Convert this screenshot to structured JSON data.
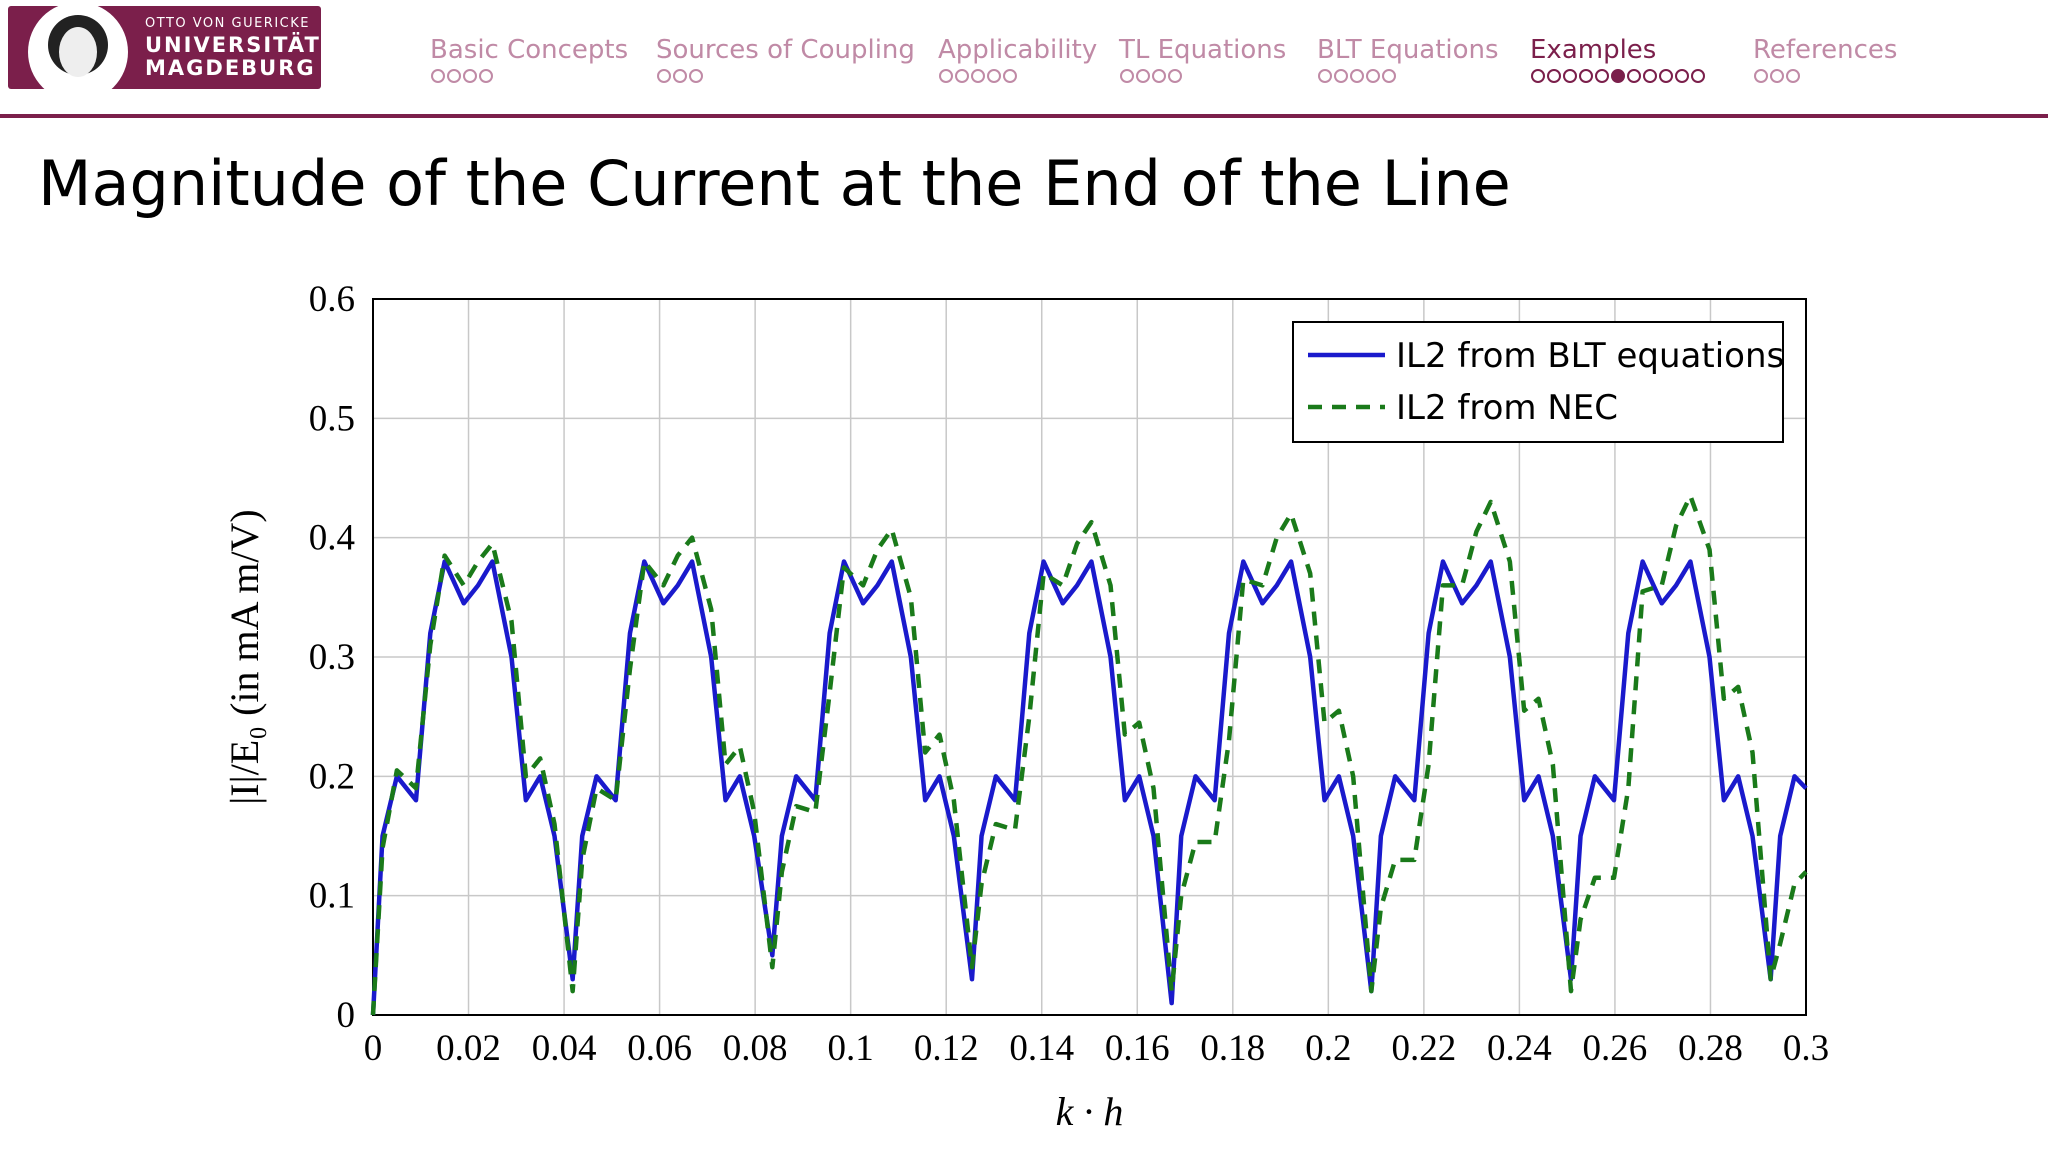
{
  "header": {
    "logo": [
      "OTTO VON GUERICKE",
      "UNIVERSITÄT",
      "MAGDEBURG"
    ],
    "nav": [
      "Basic Concepts",
      "Sources of Coupling",
      "Applicability",
      "TL Equations",
      "BLT Equations",
      "Examples",
      "References"
    ],
    "slide_title": "Magnitude of the Current at the End of the Line"
  },
  "chart_data": {
    "type": "line",
    "x_label": "k · h",
    "y_label": "|I|/E₀ (in mA m/V)",
    "xlim": [
      0,
      0.3
    ],
    "ylim": [
      0,
      0.6
    ],
    "xticks": [
      0,
      0.02,
      0.04,
      0.06,
      0.08,
      0.1,
      0.12,
      0.14,
      0.16,
      0.18,
      0.2,
      0.22,
      0.24,
      0.26,
      0.28,
      0.3
    ],
    "yticks": [
      0,
      0.1,
      0.2,
      0.3,
      0.4,
      0.5,
      0.6
    ],
    "grid": true,
    "legend": "upper right",
    "x": [
      0,
      0.002,
      0.005,
      0.009,
      0.012,
      0.015,
      0.019,
      0.022,
      0.025,
      0.029,
      0.032,
      0.035,
      0.038,
      0.0418,
      0.0438,
      0.0468,
      0.0508,
      0.0538,
      0.0568,
      0.0608,
      0.0638,
      0.0668,
      0.0708,
      0.0738,
      0.0768,
      0.0798,
      0.0836,
      0.0856,
      0.0886,
      0.0926,
      0.0956,
      0.0986,
      0.1026,
      0.1056,
      0.1086,
      0.1126,
      0.1156,
      0.1186,
      0.1216,
      0.1254,
      0.1274,
      0.1304,
      0.1344,
      0.1374,
      0.1404,
      0.1444,
      0.1474,
      0.1504,
      0.1544,
      0.1574,
      0.1604,
      0.1634,
      0.1672,
      0.1692,
      0.1722,
      0.1762,
      0.1792,
      0.1822,
      0.1862,
      0.1892,
      0.1922,
      0.1962,
      0.1992,
      0.2022,
      0.2052,
      0.209,
      0.211,
      0.214,
      0.218,
      0.221,
      0.224,
      0.228,
      0.231,
      0.234,
      0.238,
      0.241,
      0.244,
      0.247,
      0.2508,
      0.2528,
      0.2558,
      0.2598,
      0.2628,
      0.2658,
      0.2698,
      0.2728,
      0.2758,
      0.2798,
      0.2828,
      0.2858,
      0.2888,
      0.2926,
      0.2946,
      0.2976,
      0.3
    ],
    "series": [
      {
        "name": "IL2 from BLT equations",
        "color": "#1a1acc",
        "dash": false,
        "values": [
          0,
          0.15,
          0.2,
          0.18,
          0.32,
          0.38,
          0.345,
          0.36,
          0.38,
          0.3,
          0.18,
          0.2,
          0.15,
          0.03,
          0.15,
          0.2,
          0.18,
          0.32,
          0.38,
          0.345,
          0.36,
          0.38,
          0.3,
          0.18,
          0.2,
          0.15,
          0.05,
          0.15,
          0.2,
          0.18,
          0.32,
          0.38,
          0.345,
          0.36,
          0.38,
          0.3,
          0.18,
          0.2,
          0.15,
          0.03,
          0.15,
          0.2,
          0.18,
          0.32,
          0.38,
          0.345,
          0.36,
          0.38,
          0.3,
          0.18,
          0.2,
          0.15,
          0.01,
          0.15,
          0.2,
          0.18,
          0.32,
          0.38,
          0.345,
          0.36,
          0.38,
          0.3,
          0.18,
          0.2,
          0.15,
          0.02,
          0.15,
          0.2,
          0.18,
          0.32,
          0.38,
          0.345,
          0.36,
          0.38,
          0.3,
          0.18,
          0.2,
          0.15,
          0.03,
          0.15,
          0.2,
          0.18,
          0.32,
          0.38,
          0.345,
          0.36,
          0.38,
          0.3,
          0.18,
          0.2,
          0.15,
          0.03,
          0.15,
          0.2,
          0.19
        ]
      },
      {
        "name": "IL2 from NEC",
        "color": "#1a7a1a",
        "dash": true,
        "values": [
          0,
          0.14,
          0.205,
          0.19,
          0.31,
          0.385,
          0.36,
          0.38,
          0.395,
          0.33,
          0.2,
          0.215,
          0.16,
          0.02,
          0.13,
          0.19,
          0.18,
          0.29,
          0.38,
          0.36,
          0.385,
          0.4,
          0.34,
          0.21,
          0.225,
          0.17,
          0.04,
          0.12,
          0.175,
          0.17,
          0.27,
          0.375,
          0.36,
          0.39,
          0.407,
          0.35,
          0.22,
          0.235,
          0.18,
          0.04,
          0.11,
          0.16,
          0.155,
          0.25,
          0.37,
          0.36,
          0.395,
          0.413,
          0.36,
          0.235,
          0.245,
          0.19,
          0.02,
          0.1,
          0.145,
          0.145,
          0.23,
          0.365,
          0.36,
          0.4,
          0.42,
          0.37,
          0.245,
          0.255,
          0.2,
          0.02,
          0.09,
          0.13,
          0.13,
          0.21,
          0.36,
          0.36,
          0.405,
          0.43,
          0.38,
          0.255,
          0.265,
          0.21,
          0.02,
          0.08,
          0.115,
          0.115,
          0.19,
          0.355,
          0.36,
          0.41,
          0.435,
          0.39,
          0.265,
          0.275,
          0.22,
          0.03,
          0.06,
          0.11,
          0.12
        ]
      }
    ]
  }
}
